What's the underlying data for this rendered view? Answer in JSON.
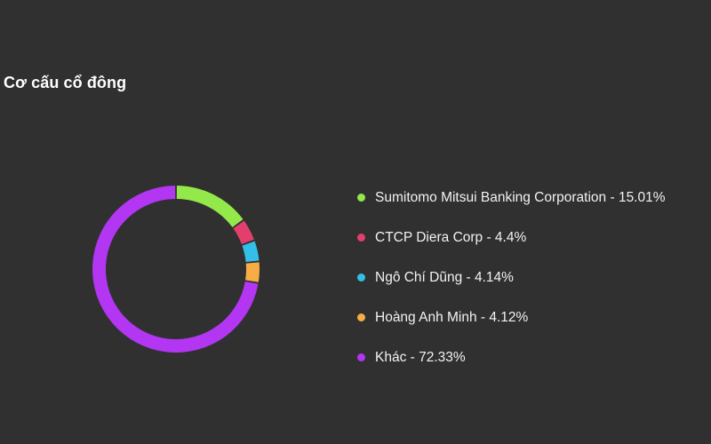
{
  "title": "Cơ cấu cổ đông",
  "chart_data": {
    "type": "pie",
    "style": "donut",
    "title": "Cơ cấu cổ đông",
    "categories": [
      "Sumitomo Mitsui Banking Corporation",
      "CTCP Diera Corp",
      "Ngô Chí Dũng",
      "Hoàng Anh Minh",
      "Khác"
    ],
    "values": [
      15.01,
      4.4,
      4.14,
      4.12,
      72.33
    ],
    "unit": "%",
    "colors": [
      "#93e84a",
      "#e23f6e",
      "#33bfe8",
      "#f7ac45",
      "#b236f2"
    ],
    "legend_labels": [
      "Sumitomo Mitsui Banking Corporation - 15.01%",
      "CTCP Diera Corp - 4.4%",
      "Ngô Chí Dũng - 4.14%",
      "Hoàng Anh Minh - 4.12%",
      "Khác - 72.33%"
    ],
    "legend_position": "right"
  }
}
